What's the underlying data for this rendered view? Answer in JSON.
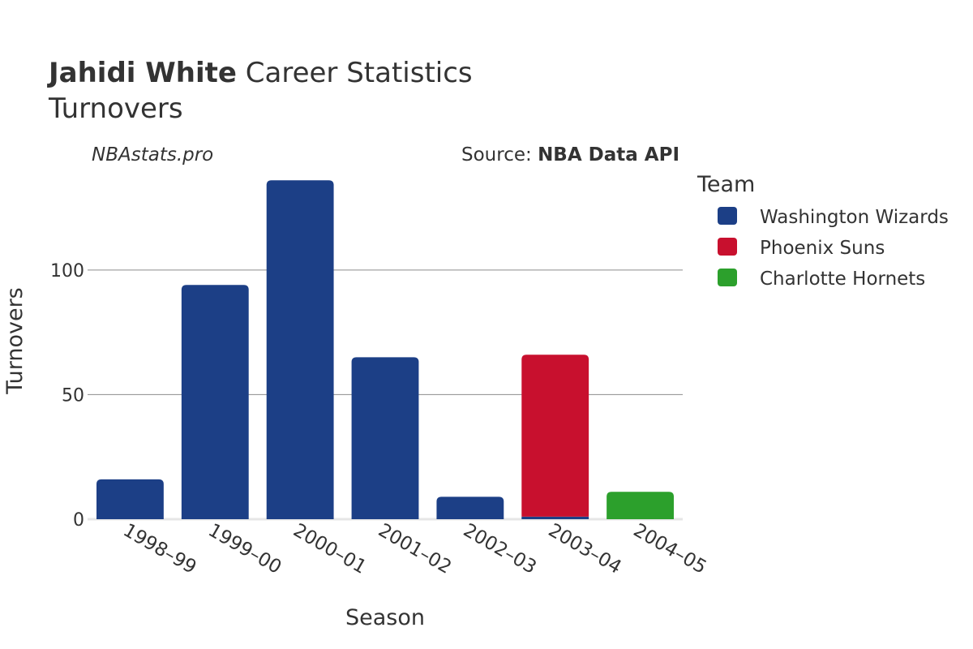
{
  "title": {
    "name": "Jahidi White",
    "suffix": "Career Statistics",
    "subtitle": "Turnovers"
  },
  "watermark": "NBAstats.pro",
  "source": {
    "prefix": "Source:",
    "name": "NBA Data API"
  },
  "chart_data": {
    "type": "bar",
    "stacked": true,
    "title": "Jahidi White Career Statistics",
    "subtitle": "Turnovers",
    "xlabel": "Season",
    "ylabel": "Turnovers",
    "ylim": [
      0,
      140
    ],
    "yticks": [
      0,
      50,
      100
    ],
    "grid": true,
    "legend_title": "Team",
    "legend_position": "right",
    "categories": [
      "1998–99",
      "1999–00",
      "2000–01",
      "2001–02",
      "2002–03",
      "2003–04",
      "2004–05"
    ],
    "series": [
      {
        "name": "Washington Wizards",
        "color": "#1c3f86",
        "values": [
          16,
          94,
          136,
          65,
          9,
          1,
          0
        ]
      },
      {
        "name": "Phoenix Suns",
        "color": "#c8102e",
        "values": [
          0,
          0,
          0,
          0,
          0,
          65,
          0
        ]
      },
      {
        "name": "Charlotte Hornets",
        "color": "#2ca02c",
        "values": [
          0,
          0,
          0,
          0,
          0,
          0,
          11
        ]
      }
    ]
  }
}
